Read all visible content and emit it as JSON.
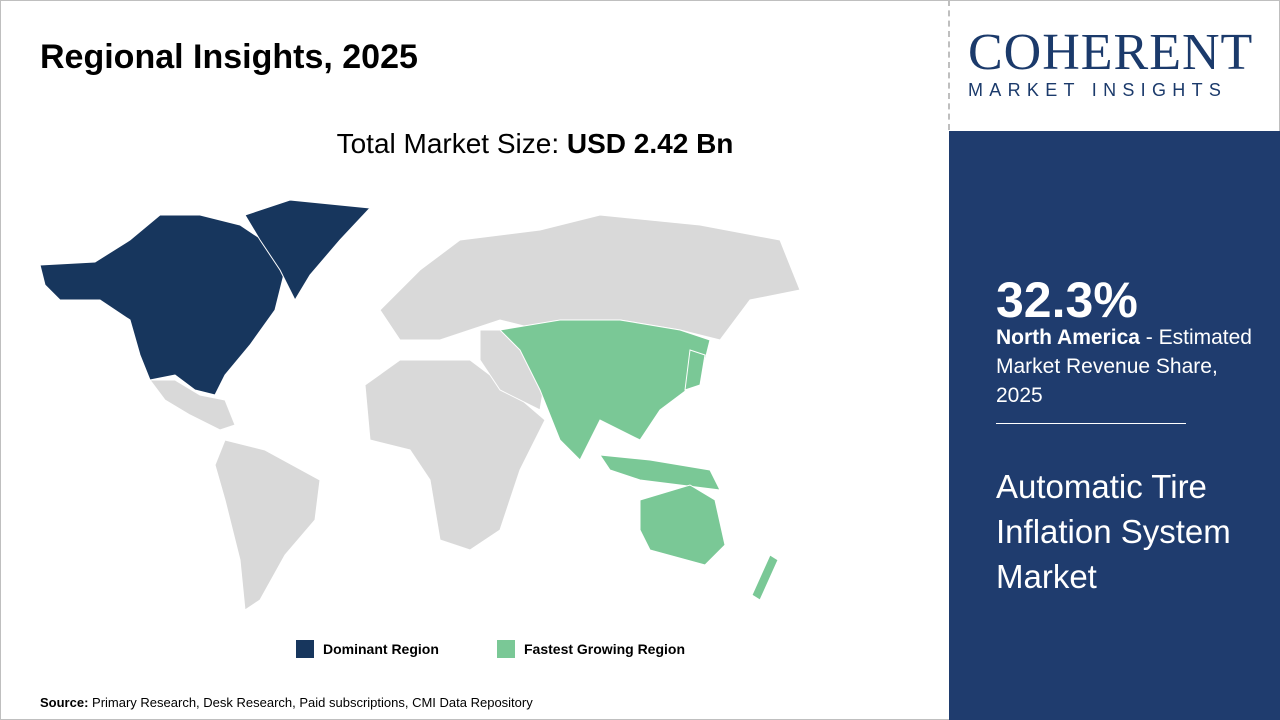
{
  "title": "Regional Insights, 2025",
  "total_label": "Total Market Size:",
  "total_value": "USD 2.42 Bn",
  "logo": {
    "line1": "COHERENT",
    "line2": "MARKET INSIGHTS"
  },
  "panel": {
    "share": "32.3%",
    "region": "North America",
    "share_desc": " - Estimated Market Revenue Share, 2025",
    "market_name": "Automatic Tire Inflation System Market"
  },
  "legend": [
    {
      "label": "Dominant Region",
      "color": "#17365d"
    },
    {
      "label": "Fastest Growing Region",
      "color": "#7ac896"
    }
  ],
  "map_colors": {
    "other": "#d9d9d9",
    "dominant": "#17365d",
    "fastest": "#7ac896"
  },
  "source": {
    "label": "Source:",
    "text": " Primary Research, Desk Research, Paid subscriptions, CMI Data Repository"
  }
}
